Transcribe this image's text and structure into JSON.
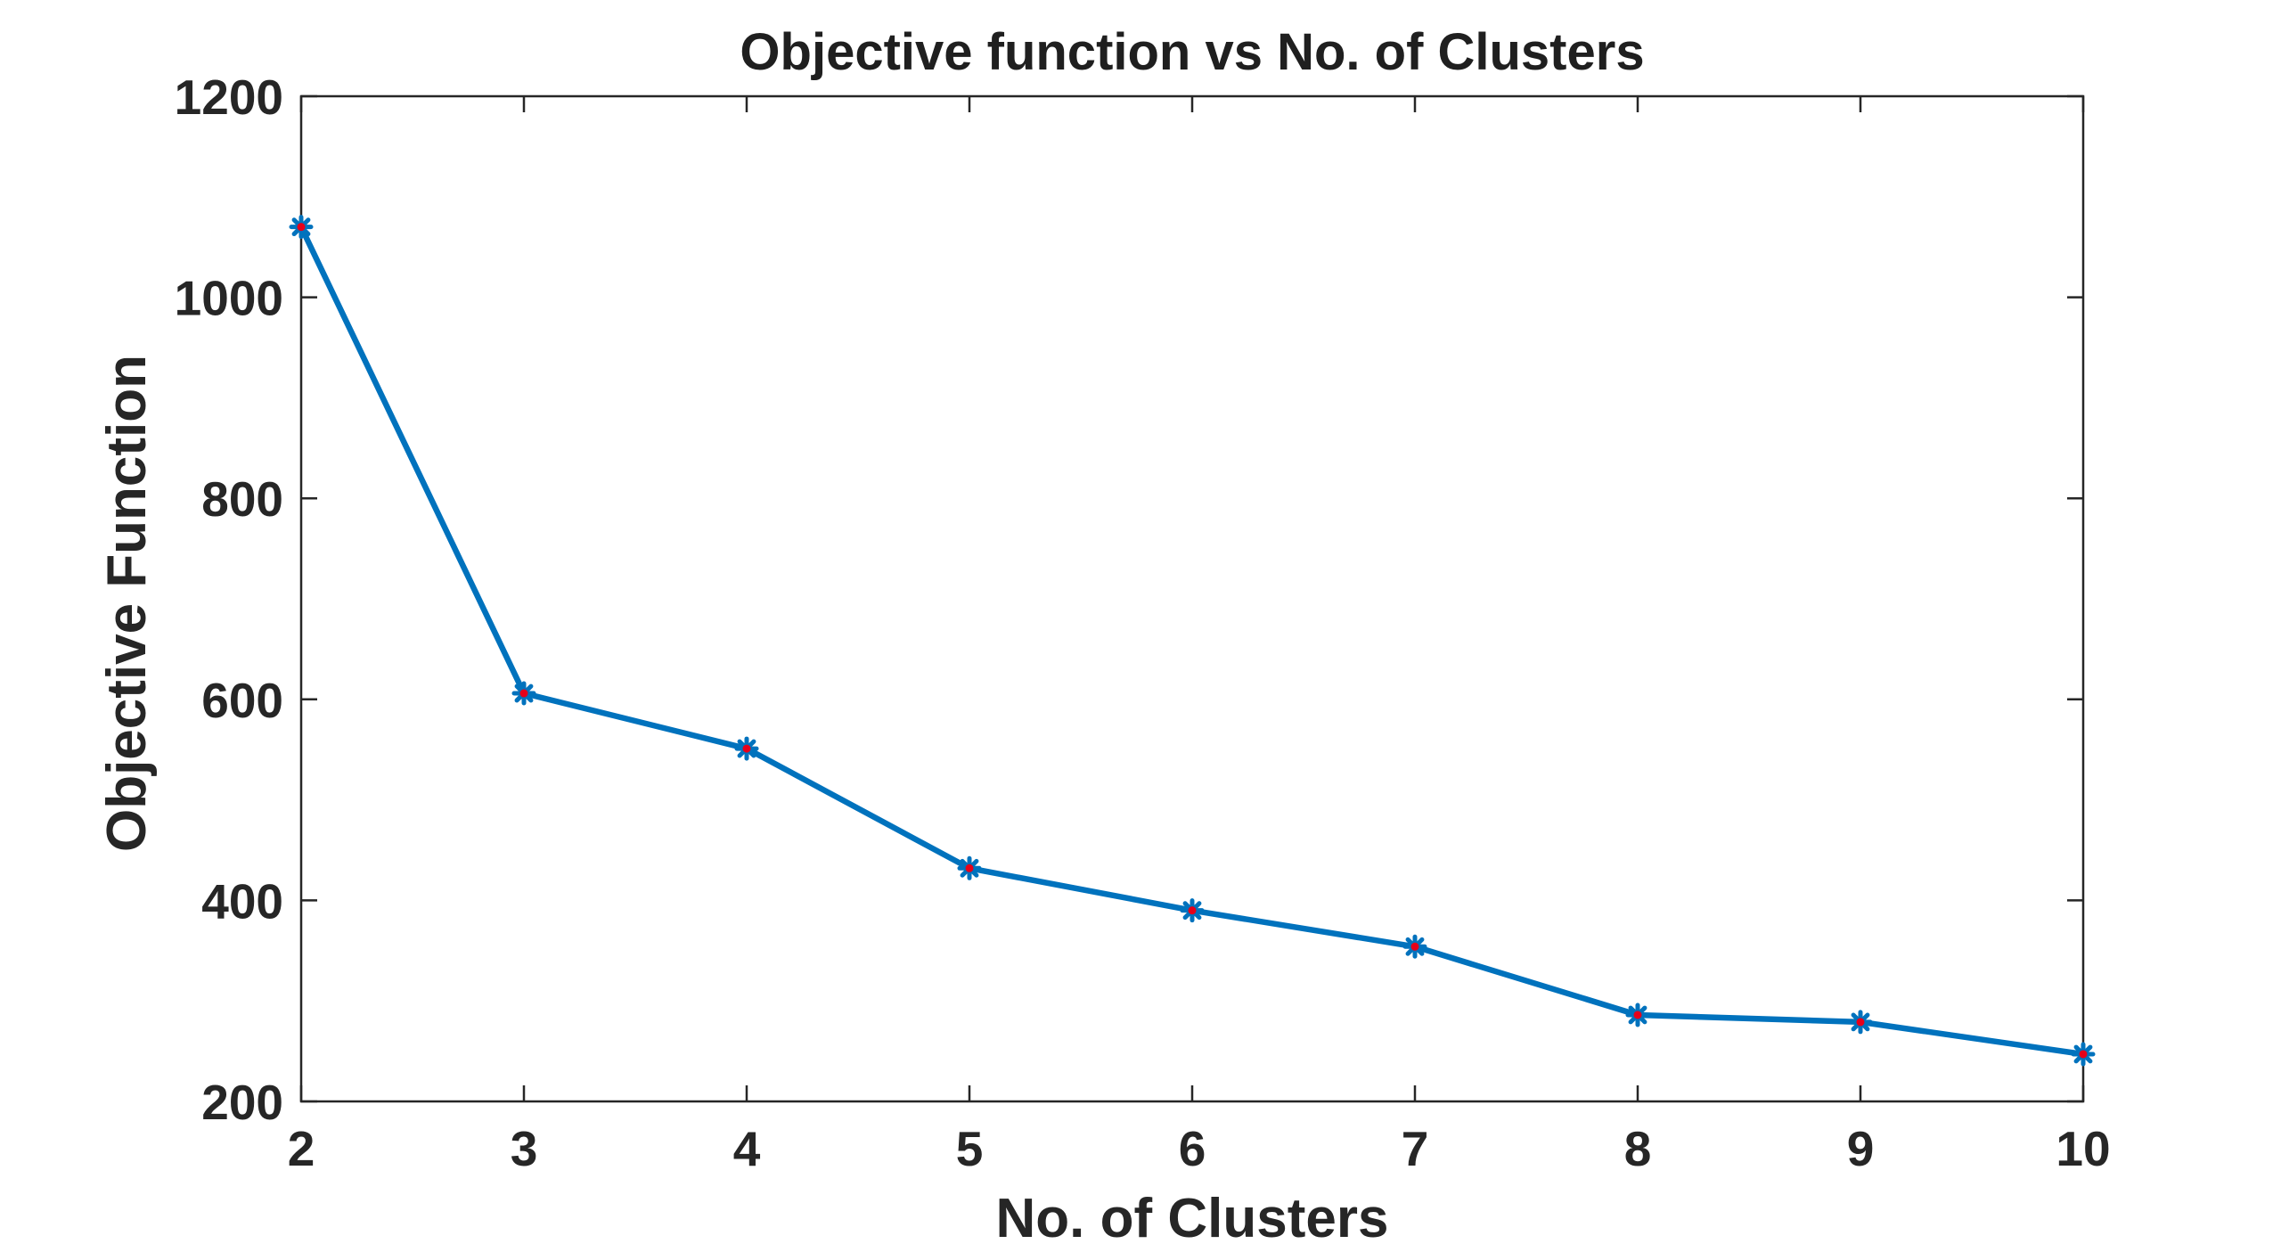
{
  "chart_data": {
    "type": "line",
    "title": "Objective function vs No. of Clusters",
    "xlabel": "No. of Clusters",
    "ylabel": "Objective Function",
    "x": [
      2,
      3,
      4,
      5,
      6,
      7,
      8,
      9,
      10
    ],
    "series": [
      {
        "values": [
          1070,
          606,
          551,
          432,
          390,
          354,
          286,
          279,
          247
        ],
        "color": "#0072bd",
        "marker": "star",
        "marker_center_color": "#e6001a"
      }
    ],
    "xlim": [
      2,
      10
    ],
    "ylim": [
      200,
      1200
    ],
    "xticks": [
      2,
      3,
      4,
      5,
      6,
      7,
      8,
      9,
      10
    ],
    "yticks": [
      200,
      400,
      600,
      800,
      1000,
      1200
    ],
    "xtick_labels": [
      "2",
      "3",
      "4",
      "5",
      "6",
      "7",
      "8",
      "9",
      "10"
    ],
    "ytick_labels": [
      "200",
      "400",
      "600",
      "800",
      "1000",
      "1200"
    ],
    "grid": false,
    "box": true
  }
}
